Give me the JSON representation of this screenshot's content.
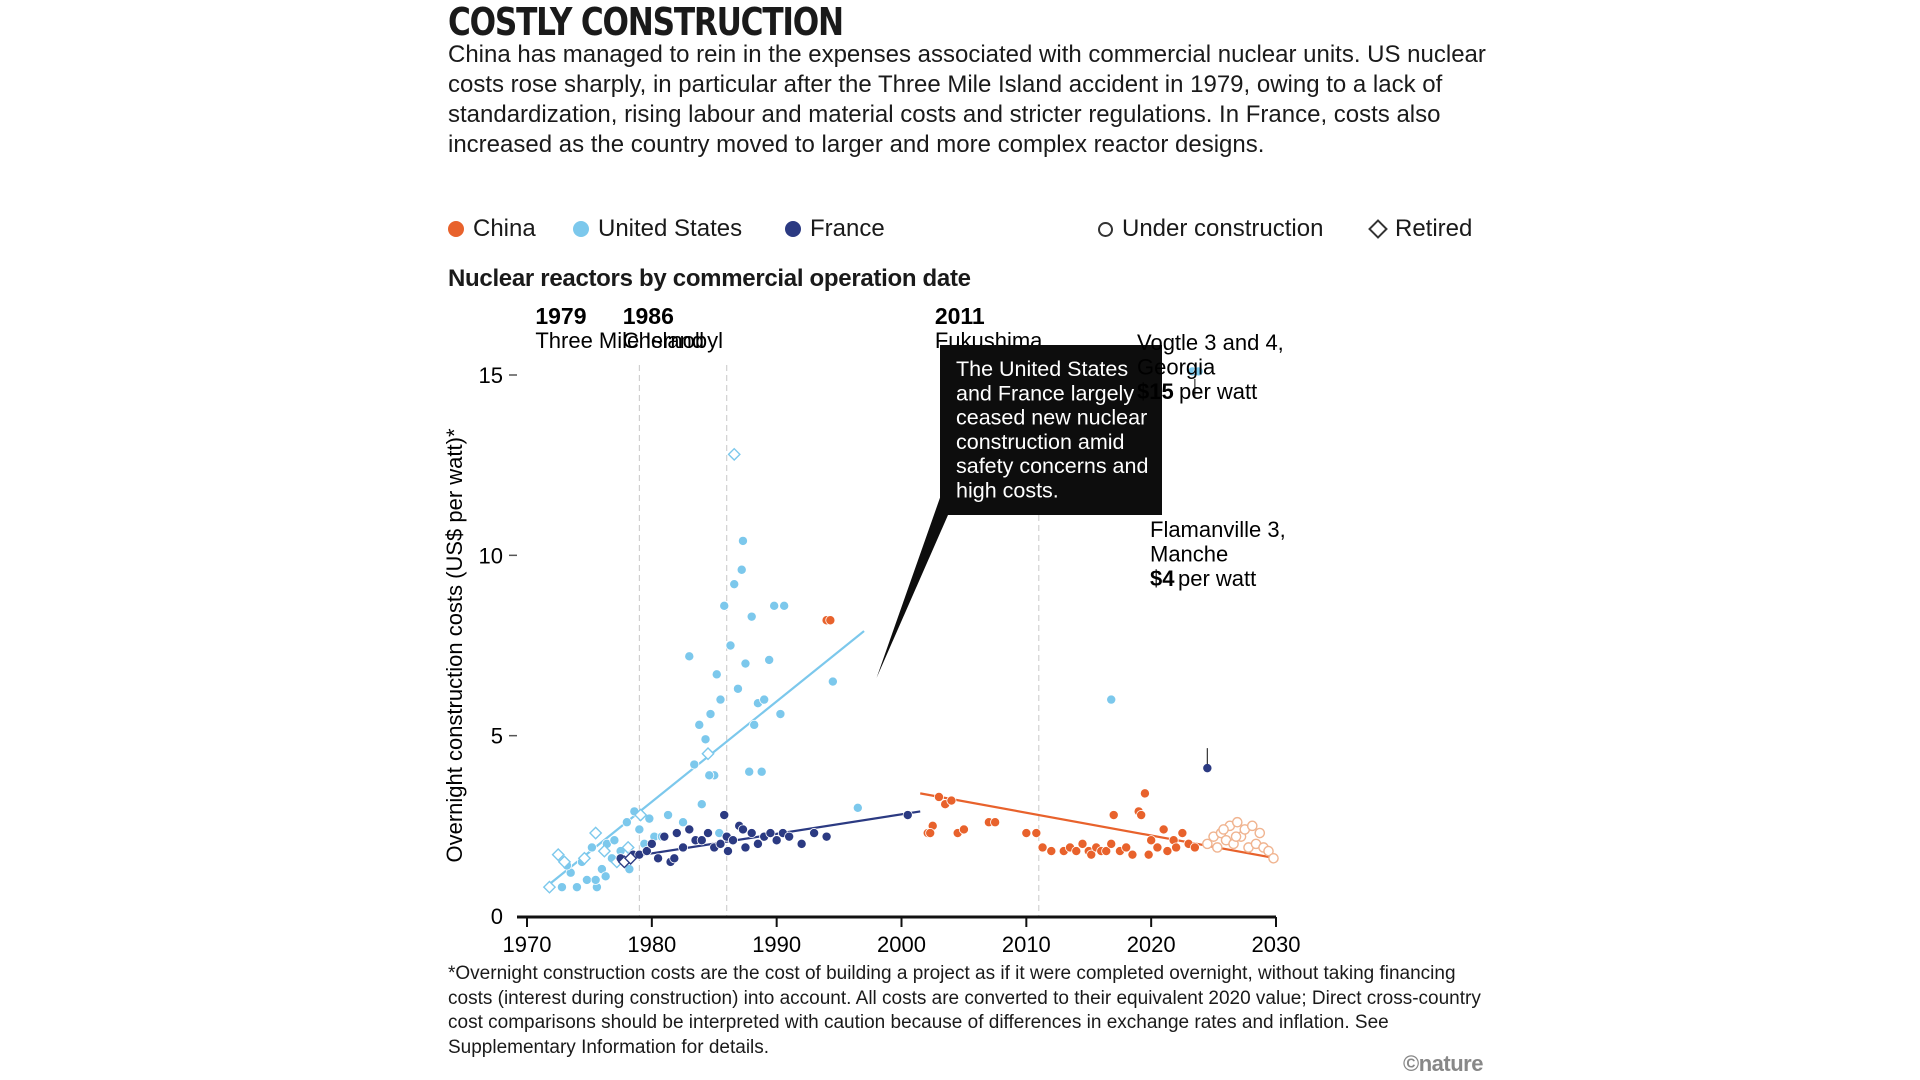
{
  "title": "COSTLY CONSTRUCTION",
  "intro": "China has managed to rein in the expenses associated with commercial nuclear units. US nuclear costs rose sharply, in particular after the Three Mile Island accident in 1979, owing to a lack of standardization, rising labour and material costs and stricter regulations. In France, costs also increased as the country moved to larger and more complex reactor designs.",
  "legend": {
    "china": "China",
    "us": "United States",
    "france": "France",
    "under_construction": "Under construction",
    "retired": "Retired"
  },
  "subtitle": "Nuclear reactors by commercial operation date",
  "footnote": "*Overnight construction costs are the cost of building a project as if it were completed overnight, without taking financing costs (interest during construction) into account. All costs are converted to their equivalent 2020 value; Direct cross-country cost comparisons should be interpreted with caution because of differences in exchange rates and inflation. See Supplementary Information for details.",
  "credit": "©nature",
  "colors": {
    "china": "#e8622c",
    "us": "#7cc8ec",
    "france": "#2b3a82",
    "callout_bg": "#0d0d0d"
  },
  "chart_data": {
    "type": "scatter",
    "xlabel": "",
    "ylabel": "Overnight construction costs (US$ per watt)*",
    "xlim": [
      1970,
      2030
    ],
    "ylim": [
      0,
      15
    ],
    "xticks": [
      1970,
      1980,
      1990,
      2000,
      2010,
      2020,
      2030
    ],
    "yticks": [
      0,
      5,
      10,
      15
    ],
    "events": [
      {
        "x": 1979,
        "year": "1979",
        "label": "Three Mile Island"
      },
      {
        "x": 1986,
        "year": "1986",
        "label": "Chernobyl"
      },
      {
        "x": 2011,
        "year": "2011",
        "label": "Fukushima"
      }
    ],
    "callout": {
      "lines": [
        "The United States",
        "and France largely",
        "ceased new nuclear",
        "construction amid",
        "safety concerns and",
        "high costs."
      ],
      "pointer": [
        1998,
        6.6
      ]
    },
    "annotations": {
      "vogtle": {
        "lines": [
          "Vogtle 3 and 4,",
          "Georgia"
        ],
        "amount": "$15",
        "unit": " per watt",
        "point": [
          2023.5,
          15.0
        ]
      },
      "flamanville": {
        "lines": [
          "Flamanville 3,",
          "Manche"
        ],
        "amount": "$4",
        "unit": " per watt",
        "point": [
          2024.5,
          4.1
        ]
      }
    },
    "trendlines": [
      {
        "name": "United States",
        "from": [
          1971.5,
          0.8
        ],
        "to": [
          1997,
          7.9
        ]
      },
      {
        "name": "France",
        "from": [
          1977.5,
          1.6
        ],
        "to": [
          2001.5,
          2.9
        ]
      },
      {
        "name": "China",
        "from": [
          2001.5,
          3.4
        ],
        "to": [
          2030,
          1.6
        ]
      }
    ],
    "series": [
      {
        "name": "United States",
        "status": "operating",
        "x": [
          1972.8,
          1973.5,
          1974,
          1974.4,
          1974.8,
          1975.2,
          1975.6,
          1976,
          1976.4,
          1976.8,
          1977,
          1977.5,
          1978,
          1978.2,
          1978.6,
          1979,
          1979.4,
          1979.8,
          1980.2,
          1980.8,
          1981.3,
          1982,
          1982.5,
          1983,
          1983.4,
          1983.8,
          1984,
          1984.3,
          1984.7,
          1985,
          1985.2,
          1985.5,
          1985.8,
          1986.3,
          1986.6,
          1986.9,
          1987.2,
          1987.5,
          1987.8,
          1988,
          1988.2,
          1988.5,
          1989,
          1989.4,
          1989.8,
          1990.3,
          1990.6,
          1994.5,
          1996.5,
          1975.5,
          1973.2,
          1976.3,
          1984.6,
          1985.4,
          1987.3,
          1988.8,
          2016.8,
          2023.3,
          2023.8
        ],
        "y": [
          0.8,
          1.2,
          0.8,
          1.5,
          1.0,
          1.9,
          0.8,
          1.3,
          2.0,
          1.6,
          2.1,
          1.8,
          2.6,
          1.3,
          2.9,
          2.4,
          2.0,
          2.7,
          2.2,
          2.2,
          2.8,
          2.3,
          2.6,
          7.2,
          4.2,
          5.3,
          3.1,
          4.9,
          5.6,
          3.9,
          6.7,
          6.0,
          8.6,
          7.5,
          9.2,
          6.3,
          9.6,
          7.0,
          4.0,
          8.3,
          5.3,
          5.9,
          6.0,
          7.1,
          8.6,
          5.6,
          8.6,
          6.5,
          3.0,
          1.0,
          1.4,
          1.1,
          3.9,
          2.3,
          10.4,
          4.0,
          6.0,
          15.1,
          15.1
        ]
      },
      {
        "name": "United States",
        "status": "retired",
        "x": [
          1971.8,
          1972.5,
          1973,
          1974.6,
          1975.5,
          1976.2,
          1978.1,
          1979.1,
          1984.5,
          1986.6,
          1977.2
        ],
        "y": [
          0.8,
          1.7,
          1.5,
          1.6,
          2.3,
          1.8,
          1.9,
          2.8,
          4.5,
          12.8,
          1.5
        ]
      },
      {
        "name": "France",
        "status": "operating",
        "x": [
          1977.5,
          1978.5,
          1979,
          1979.6,
          1980,
          1980.5,
          1981,
          1981.5,
          1982,
          1982.5,
          1983,
          1983.5,
          1984,
          1984.5,
          1985,
          1985.5,
          1986,
          1986.5,
          1987,
          1987.5,
          1988,
          1988.5,
          1989,
          1989.5,
          1990,
          1990.5,
          1991,
          1992,
          1993,
          1994,
          1985.8,
          1981.8,
          1986.1,
          1987.3,
          2000.5,
          2024.5
        ],
        "y": [
          1.6,
          1.7,
          1.7,
          1.8,
          2.0,
          1.6,
          2.2,
          1.5,
          2.3,
          1.9,
          2.4,
          2.1,
          2.1,
          2.3,
          1.9,
          2.0,
          2.2,
          2.1,
          2.5,
          1.9,
          2.3,
          2.0,
          2.2,
          2.3,
          2.1,
          2.3,
          2.2,
          2.0,
          2.3,
          2.2,
          2.8,
          1.6,
          1.8,
          2.4,
          2.8,
          4.1
        ]
      },
      {
        "name": "France",
        "status": "retired",
        "x": [
          1977.8,
          1978.3
        ],
        "y": [
          1.5,
          1.6
        ]
      },
      {
        "name": "China",
        "status": "operating",
        "x": [
          1994,
          1994.3,
          2002.5,
          2003,
          2003.5,
          2004,
          2004.5,
          2005,
          2007,
          2007.5,
          2010,
          2010.8,
          2011.3,
          2012,
          2013,
          2013.5,
          2014,
          2014.5,
          2015,
          2015.2,
          2015.6,
          2016,
          2016.4,
          2016.8,
          2017,
          2017.5,
          2018,
          2018.5,
          2019,
          2019.2,
          2019.5,
          2019.8,
          2020,
          2020.5,
          2021,
          2021.3,
          2021.8,
          2022,
          2022.5,
          2023,
          2023.5,
          2002.1,
          2002.3
        ],
        "y": [
          8.2,
          8.2,
          2.5,
          3.3,
          3.1,
          3.2,
          2.3,
          2.4,
          2.6,
          2.6,
          2.3,
          2.3,
          1.9,
          1.8,
          1.8,
          1.9,
          1.8,
          2.0,
          1.8,
          1.7,
          1.9,
          1.8,
          1.8,
          2.0,
          2.8,
          1.8,
          1.9,
          1.7,
          2.9,
          2.8,
          3.4,
          1.7,
          2.1,
          1.9,
          2.4,
          1.8,
          2.1,
          1.9,
          2.3,
          2.0,
          1.9,
          2.3,
          2.3
        ]
      },
      {
        "name": "China",
        "status": "under_construction",
        "x": [
          2024.5,
          2025,
          2025.3,
          2025.6,
          2026,
          2026.3,
          2026.6,
          2026.9,
          2027.2,
          2027.5,
          2027.8,
          2028.1,
          2028.4,
          2028.7,
          2029,
          2029.4,
          2029.8,
          2025.8,
          2026.8
        ],
        "y": [
          2.0,
          2.2,
          1.9,
          2.3,
          2.1,
          2.5,
          2.0,
          2.6,
          2.2,
          2.4,
          1.9,
          2.5,
          2.0,
          2.3,
          1.9,
          1.8,
          1.6,
          2.4,
          2.2
        ]
      }
    ]
  }
}
